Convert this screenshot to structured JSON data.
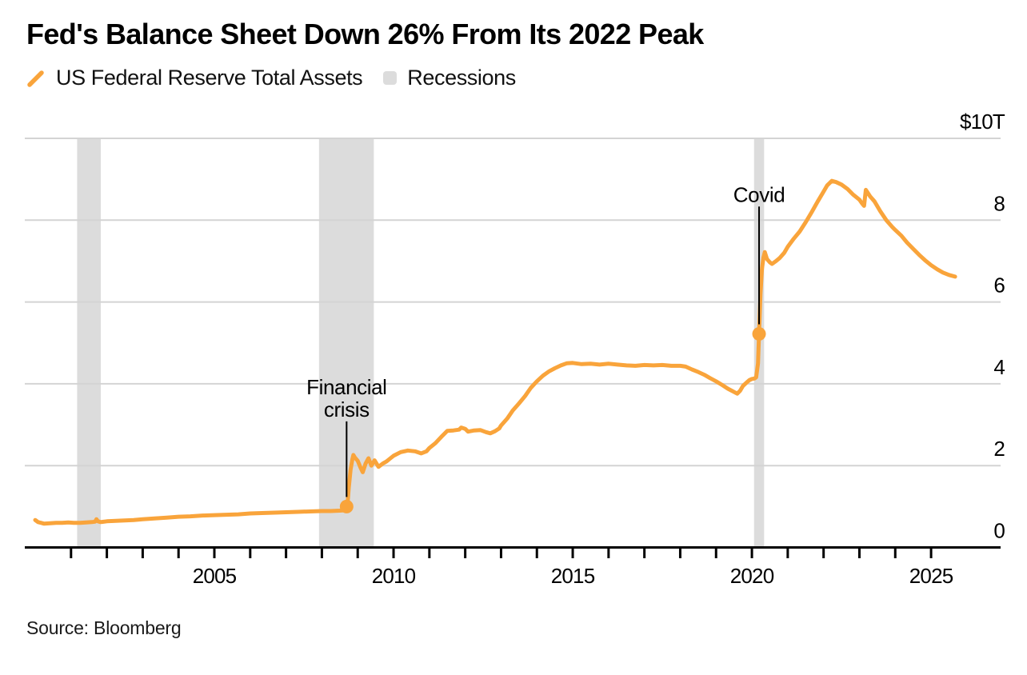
{
  "title": "Fed's Balance Sheet Down 26% From Its 2022 Peak",
  "source": "Source: Bloomberg",
  "legend": [
    {
      "label": "US Federal Reserve Total Assets",
      "type": "line"
    },
    {
      "label": "Recessions",
      "type": "band"
    }
  ],
  "colors": {
    "line": "#F9A43B",
    "band": "#DCDCDC",
    "grid": "#D4D4D4",
    "axis": "#000000",
    "text": "#000000"
  },
  "chart_data": {
    "type": "line",
    "title": "Fed's Balance Sheet Down 26% From Its 2022 Peak",
    "unit": "USD trillions",
    "xlim": [
      1999.71,
      2026.94
    ],
    "ylim": [
      0,
      10
    ],
    "grid": "horizontal",
    "legend_position": "top-left",
    "y_top_label": "$10T",
    "y_ticks": [
      [
        0,
        "0"
      ],
      [
        2,
        "2"
      ],
      [
        4,
        "4"
      ],
      [
        6,
        "6"
      ],
      [
        8,
        "8"
      ],
      [
        10,
        "$10T"
      ]
    ],
    "grid_values": [
      2,
      4,
      6,
      8,
      10
    ],
    "x_ticks": [
      2005,
      2010,
      2015,
      2020,
      2025
    ],
    "minor_tick_years": [
      2001,
      2025
    ],
    "recessions": [
      [
        2001.17,
        2001.83
      ],
      [
        2007.92,
        2009.45
      ],
      [
        2020.06,
        2020.34
      ]
    ],
    "annotations": [
      {
        "lines": [
          "Financial",
          "crisis"
        ],
        "x": 2008.69,
        "y": 1.0,
        "label_y": 3.2
      },
      {
        "lines": [
          "Covid"
        ],
        "x": 2020.2,
        "y": 5.22,
        "label_y": 8.45
      }
    ],
    "series": [
      {
        "name": "US Federal Reserve Total Assets",
        "points": [
          [
            2000.0,
            0.67
          ],
          [
            2000.08,
            0.62
          ],
          [
            2000.17,
            0.6
          ],
          [
            2000.25,
            0.58
          ],
          [
            2000.42,
            0.59
          ],
          [
            2000.58,
            0.6
          ],
          [
            2000.75,
            0.6
          ],
          [
            2000.92,
            0.61
          ],
          [
            2001.08,
            0.6
          ],
          [
            2001.25,
            0.6
          ],
          [
            2001.42,
            0.61
          ],
          [
            2001.58,
            0.62
          ],
          [
            2001.67,
            0.63
          ],
          [
            2001.71,
            0.69
          ],
          [
            2001.75,
            0.64
          ],
          [
            2001.83,
            0.62
          ],
          [
            2002.0,
            0.64
          ],
          [
            2002.25,
            0.65
          ],
          [
            2002.5,
            0.66
          ],
          [
            2002.75,
            0.67
          ],
          [
            2003.0,
            0.69
          ],
          [
            2003.33,
            0.71
          ],
          [
            2003.67,
            0.73
          ],
          [
            2004.0,
            0.75
          ],
          [
            2004.33,
            0.76
          ],
          [
            2004.67,
            0.78
          ],
          [
            2005.0,
            0.79
          ],
          [
            2005.33,
            0.8
          ],
          [
            2005.67,
            0.81
          ],
          [
            2006.0,
            0.83
          ],
          [
            2006.33,
            0.84
          ],
          [
            2006.67,
            0.85
          ],
          [
            2007.0,
            0.86
          ],
          [
            2007.33,
            0.87
          ],
          [
            2007.67,
            0.88
          ],
          [
            2008.0,
            0.89
          ],
          [
            2008.25,
            0.89
          ],
          [
            2008.5,
            0.9
          ],
          [
            2008.65,
            0.91
          ],
          [
            2008.71,
            0.98
          ],
          [
            2008.75,
            1.45
          ],
          [
            2008.8,
            1.9
          ],
          [
            2008.85,
            2.15
          ],
          [
            2008.88,
            2.26
          ],
          [
            2008.92,
            2.2
          ],
          [
            2009.0,
            2.12
          ],
          [
            2009.08,
            1.95
          ],
          [
            2009.14,
            1.84
          ],
          [
            2009.22,
            2.05
          ],
          [
            2009.3,
            2.18
          ],
          [
            2009.38,
            2.0
          ],
          [
            2009.47,
            2.13
          ],
          [
            2009.58,
            1.97
          ],
          [
            2009.7,
            2.05
          ],
          [
            2009.8,
            2.1
          ],
          [
            2009.9,
            2.17
          ],
          [
            2010.0,
            2.24
          ],
          [
            2010.2,
            2.33
          ],
          [
            2010.4,
            2.37
          ],
          [
            2010.6,
            2.35
          ],
          [
            2010.77,
            2.3
          ],
          [
            2010.92,
            2.35
          ],
          [
            2011.0,
            2.43
          ],
          [
            2011.17,
            2.55
          ],
          [
            2011.33,
            2.7
          ],
          [
            2011.5,
            2.85
          ],
          [
            2011.67,
            2.86
          ],
          [
            2011.83,
            2.88
          ],
          [
            2011.89,
            2.93
          ],
          [
            2012.0,
            2.9
          ],
          [
            2012.08,
            2.83
          ],
          [
            2012.25,
            2.86
          ],
          [
            2012.42,
            2.87
          ],
          [
            2012.58,
            2.82
          ],
          [
            2012.7,
            2.79
          ],
          [
            2012.83,
            2.84
          ],
          [
            2012.95,
            2.91
          ],
          [
            2013.0,
            2.98
          ],
          [
            2013.17,
            3.15
          ],
          [
            2013.33,
            3.35
          ],
          [
            2013.5,
            3.52
          ],
          [
            2013.67,
            3.7
          ],
          [
            2013.83,
            3.9
          ],
          [
            2014.0,
            4.06
          ],
          [
            2014.17,
            4.2
          ],
          [
            2014.33,
            4.3
          ],
          [
            2014.5,
            4.38
          ],
          [
            2014.67,
            4.45
          ],
          [
            2014.83,
            4.5
          ],
          [
            2015.0,
            4.51
          ],
          [
            2015.25,
            4.48
          ],
          [
            2015.5,
            4.49
          ],
          [
            2015.75,
            4.47
          ],
          [
            2016.0,
            4.49
          ],
          [
            2016.25,
            4.47
          ],
          [
            2016.5,
            4.45
          ],
          [
            2016.75,
            4.44
          ],
          [
            2017.0,
            4.46
          ],
          [
            2017.25,
            4.45
          ],
          [
            2017.5,
            4.46
          ],
          [
            2017.75,
            4.44
          ],
          [
            2018.0,
            4.44
          ],
          [
            2018.15,
            4.42
          ],
          [
            2018.33,
            4.35
          ],
          [
            2018.5,
            4.29
          ],
          [
            2018.67,
            4.22
          ],
          [
            2018.83,
            4.14
          ],
          [
            2019.0,
            4.06
          ],
          [
            2019.17,
            3.97
          ],
          [
            2019.33,
            3.88
          ],
          [
            2019.5,
            3.8
          ],
          [
            2019.59,
            3.76
          ],
          [
            2019.67,
            3.83
          ],
          [
            2019.75,
            3.95
          ],
          [
            2019.85,
            4.03
          ],
          [
            2019.93,
            4.09
          ],
          [
            2020.0,
            4.12
          ],
          [
            2020.07,
            4.13
          ],
          [
            2020.12,
            4.16
          ],
          [
            2020.17,
            4.5
          ],
          [
            2020.2,
            5.22
          ],
          [
            2020.24,
            6.2
          ],
          [
            2020.28,
            6.8
          ],
          [
            2020.32,
            7.08
          ],
          [
            2020.36,
            7.22
          ],
          [
            2020.42,
            7.05
          ],
          [
            2020.5,
            6.97
          ],
          [
            2020.56,
            6.93
          ],
          [
            2020.67,
            7.0
          ],
          [
            2020.78,
            7.08
          ],
          [
            2020.9,
            7.2
          ],
          [
            2021.0,
            7.35
          ],
          [
            2021.17,
            7.55
          ],
          [
            2021.33,
            7.72
          ],
          [
            2021.5,
            7.95
          ],
          [
            2021.67,
            8.2
          ],
          [
            2021.83,
            8.45
          ],
          [
            2022.0,
            8.7
          ],
          [
            2022.1,
            8.85
          ],
          [
            2022.23,
            8.96
          ],
          [
            2022.35,
            8.93
          ],
          [
            2022.5,
            8.87
          ],
          [
            2022.67,
            8.76
          ],
          [
            2022.83,
            8.62
          ],
          [
            2023.0,
            8.5
          ],
          [
            2023.08,
            8.4
          ],
          [
            2023.13,
            8.35
          ],
          [
            2023.18,
            8.74
          ],
          [
            2023.3,
            8.58
          ],
          [
            2023.42,
            8.46
          ],
          [
            2023.58,
            8.22
          ],
          [
            2023.75,
            8.0
          ],
          [
            2023.92,
            7.83
          ],
          [
            2024.0,
            7.76
          ],
          [
            2024.17,
            7.62
          ],
          [
            2024.33,
            7.45
          ],
          [
            2024.5,
            7.3
          ],
          [
            2024.67,
            7.15
          ],
          [
            2024.83,
            7.02
          ],
          [
            2025.0,
            6.9
          ],
          [
            2025.17,
            6.8
          ],
          [
            2025.33,
            6.72
          ],
          [
            2025.5,
            6.66
          ],
          [
            2025.67,
            6.62
          ]
        ]
      }
    ]
  }
}
